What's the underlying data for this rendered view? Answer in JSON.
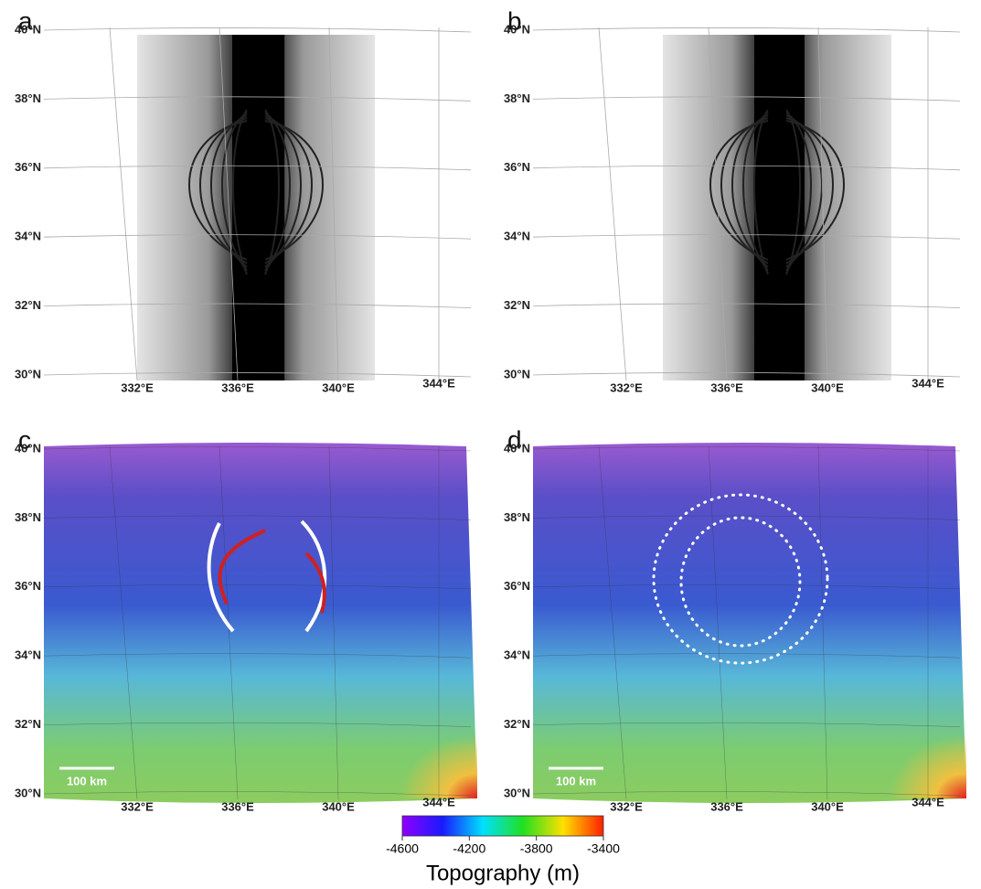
{
  "panels": [
    {
      "label": "a",
      "lat_labels": [
        "40°N",
        "38°N",
        "36°N",
        "34°N",
        "32°N",
        "30°N"
      ],
      "lon_labels": [
        "332°E",
        "336°E",
        "340°E",
        "344°E"
      ]
    },
    {
      "label": "b",
      "lat_labels": [
        "40°N",
        "38°N",
        "36°N",
        "34°N",
        "32°N",
        "30°N"
      ],
      "lon_labels": [
        "332°E",
        "336°E",
        "340°E",
        "344°E"
      ]
    },
    {
      "label": "c",
      "lat_labels": [
        "40°N",
        "38°N",
        "36°N",
        "34°N",
        "32°N",
        "30°N"
      ],
      "lon_labels": [
        "332°E",
        "336°E",
        "340°E",
        "344°E"
      ],
      "scale_bar": "100 km"
    },
    {
      "label": "d",
      "lat_labels": [
        "40°N",
        "38°N",
        "36°N",
        "34°N",
        "32°N",
        "30°N"
      ],
      "lon_labels": [
        "332°E",
        "336°E",
        "340°E",
        "344°E"
      ],
      "scale_bar": "100 km"
    }
  ],
  "colorbar": {
    "title": "Topography (m)",
    "lim": [
      -4600,
      -3400
    ],
    "ticks": [
      -4600,
      -4200,
      -3800,
      -3400
    ],
    "colors": [
      "#9000ff",
      "#1a1aff",
      "#00e0ff",
      "#20e020",
      "#ffe000",
      "#ff2000"
    ]
  }
}
